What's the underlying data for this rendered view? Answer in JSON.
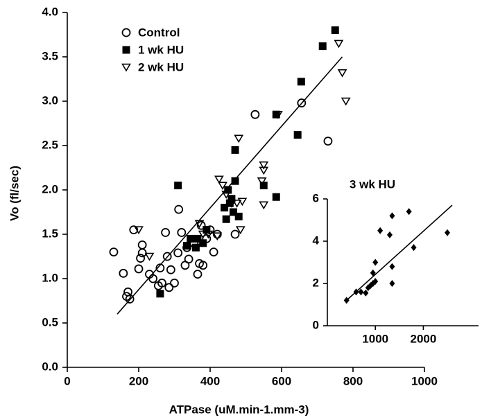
{
  "chart_data": [
    {
      "type": "scatter",
      "ylabel": "Vo (fl/sec)",
      "xlabel": "ATPase (uM.min-1.mm-3)",
      "xlim": [
        0,
        1000
      ],
      "xticks": [
        0,
        200,
        400,
        600,
        800,
        1000
      ],
      "ylim": [
        0,
        4
      ],
      "yticks": [
        {
          "value": 0,
          "label": "0.0"
        },
        0.5,
        {
          "value": 1,
          "label": "1.0"
        },
        1.5,
        {
          "value": 2,
          "label": "2.0"
        },
        2.5,
        {
          "value": 3,
          "label": "3.0"
        },
        3.5,
        {
          "value": 4,
          "label": "4.0"
        }
      ],
      "legend": "upper left",
      "series": [
        {
          "name": "Control",
          "marker": "circle-open",
          "color": "#000000",
          "x": [
            130,
            157,
            170,
            166,
            175,
            186,
            200,
            205,
            210,
            210,
            230,
            240,
            255,
            260,
            265,
            275,
            280,
            285,
            290,
            300,
            310,
            312,
            320,
            330,
            335,
            340,
            355,
            365,
            370,
            375,
            380,
            390,
            400,
            410,
            420,
            470,
            526,
            656,
            730
          ],
          "values": [
            1.3,
            1.06,
            0.85,
            0.8,
            0.77,
            1.55,
            1.11,
            1.23,
            1.38,
            1.29,
            1.05,
            1.0,
            0.92,
            1.12,
            0.95,
            1.52,
            1.25,
            0.9,
            1.1,
            0.95,
            1.29,
            1.78,
            1.52,
            1.15,
            1.35,
            1.22,
            1.4,
            1.05,
            1.17,
            1.6,
            1.15,
            1.45,
            1.55,
            1.3,
            1.5,
            1.5,
            2.85,
            2.98,
            2.55
          ]
        },
        {
          "name": "1 wk HU",
          "marker": "square-filled",
          "color": "#000000",
          "x": [
            260,
            310,
            335,
            345,
            360,
            365,
            380,
            390,
            440,
            445,
            450,
            455,
            460,
            465,
            470,
            470,
            480,
            550,
            585,
            585,
            645,
            655,
            715,
            750
          ],
          "values": [
            0.83,
            2.05,
            1.37,
            1.45,
            1.35,
            1.45,
            1.4,
            1.55,
            1.8,
            1.67,
            2.0,
            1.85,
            1.9,
            1.75,
            2.1,
            2.45,
            1.7,
            2.05,
            2.85,
            1.92,
            2.62,
            3.22,
            3.62,
            3.8
          ]
        },
        {
          "name": "2 wk HU",
          "marker": "triangle-open",
          "color": "#000000",
          "x": [
            200,
            230,
            370,
            380,
            395,
            420,
            425,
            435,
            445,
            460,
            475,
            480,
            485,
            490,
            545,
            550,
            550,
            550,
            590,
            760,
            770,
            780
          ],
          "values": [
            1.55,
            1.25,
            1.62,
            1.5,
            1.5,
            1.48,
            2.12,
            2.05,
            1.95,
            1.85,
            1.85,
            2.58,
            1.55,
            1.87,
            2.1,
            1.83,
            2.28,
            2.22,
            2.85,
            3.65,
            3.32,
            3.0
          ]
        }
      ],
      "trend_line": {
        "x": [
          140,
          770
        ],
        "values": [
          0.6,
          3.5
        ]
      }
    },
    {
      "type": "scatter",
      "title": "3 wk HU",
      "xlim": [
        0,
        3150
      ],
      "xticks": [
        1000,
        2000
      ],
      "ylim": [
        0,
        6
      ],
      "yticks": [
        0,
        2,
        4,
        6
      ],
      "series": [
        {
          "marker": "diamond-filled",
          "color": "#000000",
          "x": [
            400,
            600,
            700,
            800,
            850,
            900,
            950,
            1000,
            950,
            1000,
            1100,
            1300,
            1350,
            1350,
            1350,
            1700,
            1800,
            2500
          ],
          "values": [
            1.2,
            1.6,
            1.6,
            1.55,
            1.8,
            1.9,
            2.0,
            2.1,
            2.5,
            3.0,
            4.5,
            4.3,
            5.2,
            2.8,
            2.0,
            5.4,
            3.7,
            4.4
          ]
        }
      ],
      "trend_line": {
        "x": [
          400,
          2600
        ],
        "values": [
          1.2,
          5.7
        ]
      }
    }
  ]
}
